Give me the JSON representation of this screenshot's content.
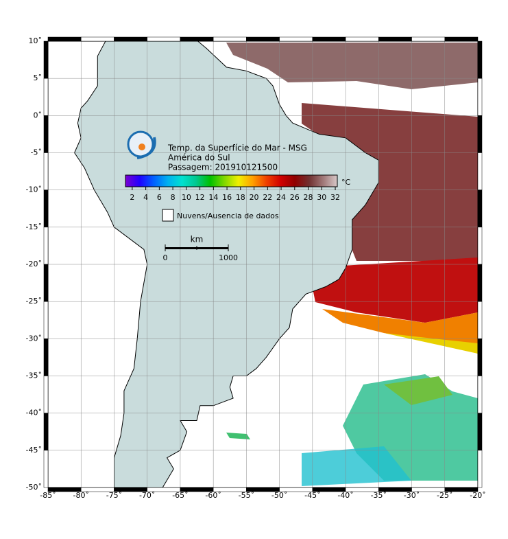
{
  "map": {
    "lonlim": [
      -85,
      -20
    ],
    "latlim": [
      -50,
      10
    ],
    "lon_ticks": [
      {
        "value": -85,
        "label": "-85˚"
      },
      {
        "value": -80,
        "label": "-80˚"
      },
      {
        "value": -75,
        "label": "-75˚"
      },
      {
        "value": -70,
        "label": "-70˚"
      },
      {
        "value": -65,
        "label": "-65˚"
      },
      {
        "value": -60,
        "label": "-60˚"
      },
      {
        "value": -55,
        "label": "-55˚"
      },
      {
        "value": -50,
        "label": "-50˚"
      },
      {
        "value": -45,
        "label": "-45˚"
      },
      {
        "value": -40,
        "label": "-40˚"
      },
      {
        "value": -35,
        "label": "-35˚"
      },
      {
        "value": -30,
        "label": "-30˚"
      },
      {
        "value": -25,
        "label": "-25˚"
      },
      {
        "value": -20,
        "label": "-20˚"
      }
    ],
    "lat_ticks": [
      {
        "value": 10,
        "label": "10˚"
      },
      {
        "value": 5,
        "label": "5˚"
      },
      {
        "value": 0,
        "label": "0˚"
      },
      {
        "value": -5,
        "label": "-5˚"
      },
      {
        "value": -10,
        "label": "-10˚"
      },
      {
        "value": -15,
        "label": "-15˚"
      },
      {
        "value": -20,
        "label": "-20˚"
      },
      {
        "value": -25,
        "label": "-25˚"
      },
      {
        "value": -30,
        "label": "-30˚"
      },
      {
        "value": -35,
        "label": "-35˚"
      },
      {
        "value": -40,
        "label": "-40˚"
      },
      {
        "value": -45,
        "label": "-45˚"
      },
      {
        "value": -50,
        "label": "-50˚"
      }
    ]
  },
  "legend": {
    "title_lines": [
      "Temp. da Superfície do Mar - MSG",
      "América do Sul",
      "Passagem: 201910121500"
    ],
    "colorbar": {
      "unit": "°C",
      "clim": [
        1,
        32.3
      ],
      "ticks": [
        2,
        4,
        6,
        8,
        10,
        12,
        14,
        16,
        18,
        20,
        22,
        24,
        26,
        28,
        30,
        32
      ],
      "colors": [
        "#7a00d0",
        "#2000ff",
        "#0060ff",
        "#00b0f0",
        "#00e0d0",
        "#00c890",
        "#00c000",
        "#80d800",
        "#f0f000",
        "#ffa000",
        "#f04000",
        "#d00000",
        "#900000",
        "#703030",
        "#a07878",
        "#d8c8c8"
      ]
    },
    "no_data": "Nuvens/Ausencia de dados",
    "scale": {
      "unit": "km",
      "labels": [
        0,
        1000
      ]
    }
  }
}
